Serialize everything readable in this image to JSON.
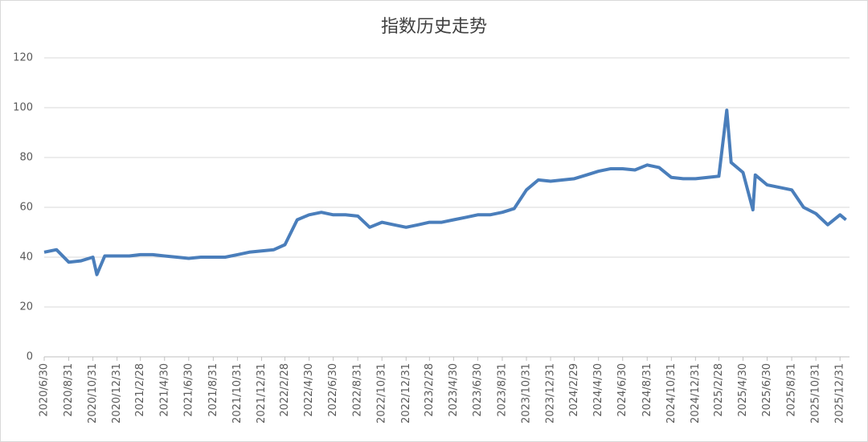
{
  "chart_data": {
    "type": "line",
    "title": "指数历史走势",
    "x": [
      "2020/6/30",
      "2020/7/31",
      "2020/8/31",
      "2020/9/30",
      "2020/10/31",
      "2020/11/10",
      "2020/11/30",
      "2020/12/31",
      "2021/1/31",
      "2021/2/28",
      "2021/3/31",
      "2021/4/30",
      "2021/5/31",
      "2021/6/30",
      "2021/7/31",
      "2021/8/31",
      "2021/9/30",
      "2021/10/31",
      "2021/11/30",
      "2021/12/31",
      "2022/1/31",
      "2022/2/28",
      "2022/3/31",
      "2022/4/30",
      "2022/5/31",
      "2022/6/30",
      "2022/7/31",
      "2022/8/31",
      "2022/9/30",
      "2022/10/31",
      "2022/11/30",
      "2022/12/31",
      "2023/1/31",
      "2023/2/28",
      "2023/3/31",
      "2023/4/30",
      "2023/5/31",
      "2023/6/30",
      "2023/7/31",
      "2023/8/31",
      "2023/9/30",
      "2023/10/31",
      "2023/11/30",
      "2023/12/31",
      "2024/1/31",
      "2024/2/29",
      "2024/3/31",
      "2024/4/30",
      "2024/5/31",
      "2024/6/30",
      "2024/7/31",
      "2024/8/31",
      "2024/9/30",
      "2024/10/31",
      "2024/11/30",
      "2024/12/31",
      "2025/1/31",
      "2025/2/28",
      "2025/3/20",
      "2025/3/31",
      "2025/4/30",
      "2025/5/25",
      "2025/5/31",
      "2025/6/30",
      "2025/7/31",
      "2025/8/31",
      "2025/9/30",
      "2025/10/31",
      "2025/11/30",
      "2025/12/31",
      "2026/1/15"
    ],
    "values": [
      42,
      43,
      38,
      38.5,
      40,
      33,
      40.5,
      40.5,
      40.5,
      41,
      41,
      40.5,
      40,
      39.5,
      40,
      40,
      40,
      41,
      42,
      42.5,
      43,
      45,
      55,
      57,
      58,
      57,
      57,
      56.5,
      52,
      54,
      53,
      52,
      53,
      54,
      54,
      55,
      56,
      57,
      57,
      58,
      59.5,
      67,
      71,
      70.5,
      71,
      71.5,
      73,
      74.5,
      75.5,
      75.5,
      75,
      77,
      76,
      72,
      71.5,
      71.5,
      72,
      72.5,
      99,
      78,
      74,
      59,
      73,
      69,
      68,
      67,
      60,
      57.5,
      53,
      57,
      55
    ],
    "color": "#4a7ebb",
    "xlim": [
      "2020/6/30",
      "2026/1/24"
    ],
    "xticks": [
      "2020/6/30",
      "2020/8/31",
      "2020/10/31",
      "2020/12/31",
      "2021/2/28",
      "2021/4/30",
      "2021/6/30",
      "2021/8/31",
      "2021/10/31",
      "2021/12/31",
      "2022/2/28",
      "2022/4/30",
      "2022/6/30",
      "2022/8/31",
      "2022/10/31",
      "2022/12/31",
      "2023/2/28",
      "2023/4/30",
      "2023/6/30",
      "2023/8/31",
      "2023/10/31",
      "2023/12/31",
      "2024/2/29",
      "2024/4/30",
      "2024/6/30",
      "2024/8/31",
      "2024/10/31",
      "2024/12/31",
      "2025/2/28",
      "2025/4/30",
      "2025/6/30",
      "2025/8/31",
      "2025/10/31",
      "2025/12/31"
    ],
    "ylim": [
      0,
      120
    ],
    "yticks": [
      0,
      20,
      40,
      60,
      80,
      100,
      120
    ],
    "grid": true
  }
}
